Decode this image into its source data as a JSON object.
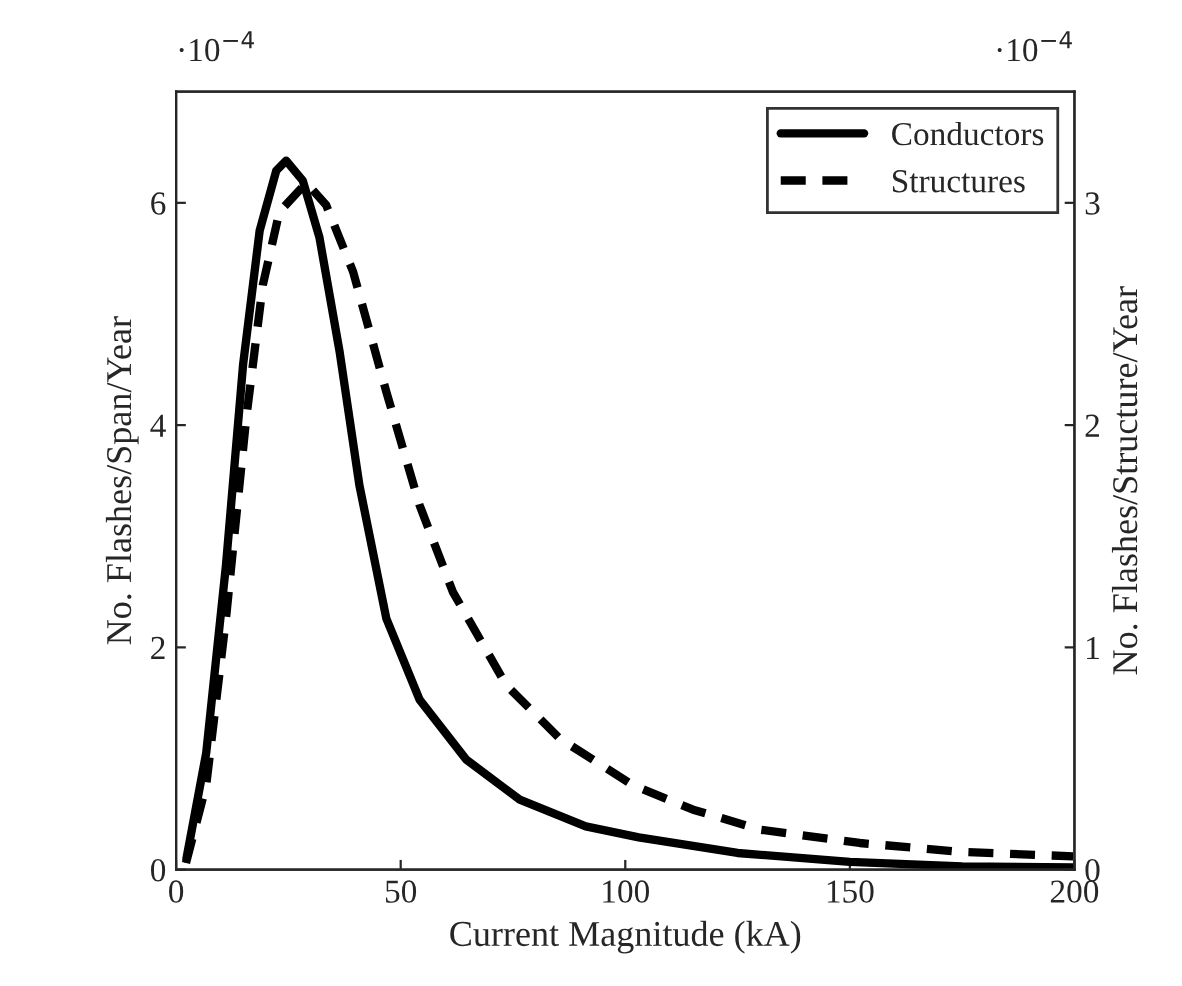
{
  "chart_data": {
    "type": "line",
    "xlabel": "Current Magnitude (kA)",
    "ylabel": "No. Flashes/Span/Year",
    "y2label": "No. Flashes/Structure/Year",
    "xlim": [
      0,
      200
    ],
    "xticks": [
      0,
      50,
      100,
      150,
      200
    ],
    "ylim": [
      0,
      7
    ],
    "yticks": [
      0,
      2,
      4,
      6
    ],
    "y2lim": [
      0,
      3.5
    ],
    "y2ticks": [
      0,
      1,
      2,
      3
    ],
    "annotations": [
      "·10$^{−4}$",
      "·10$^{−4}$"
    ],
    "legend": "top right",
    "grid": false,
    "series": [
      {
        "name": "Conductors",
        "color": "#000000",
        "line_style": "solid",
        "axis": "y",
        "x": [
          2.3,
          6.7,
          11.1,
          14.9,
          18.6,
          22.3,
          24.5,
          28.2,
          31.9,
          36.4,
          40.8,
          46.8,
          54.2,
          64.6,
          76.5,
          91.2,
          103,
          125,
          150,
          175,
          200
        ],
        "values": [
          0.1,
          1.05,
          2.74,
          4.54,
          5.75,
          6.29,
          6.38,
          6.2,
          5.69,
          4.66,
          3.46,
          2.26,
          1.53,
          0.99,
          0.63,
          0.39,
          0.29,
          0.15,
          0.07,
          0.03,
          0.02
        ]
      },
      {
        "name": "Structures",
        "color": "#000000",
        "line_style": "dashed",
        "axis": "y2",
        "x": [
          2.2,
          6.7,
          11.1,
          15.6,
          19.3,
          23.0,
          29.0,
          33.4,
          39.4,
          46.8,
          54.2,
          61.6,
          73.5,
          85.4,
          101.7,
          115.1,
          130,
          152.2,
          174.5,
          199.7
        ],
        "values": [
          0.03,
          0.38,
          1.13,
          2.03,
          2.63,
          2.96,
          3.09,
          2.99,
          2.69,
          2.15,
          1.64,
          1.25,
          0.83,
          0.59,
          0.38,
          0.27,
          0.18,
          0.12,
          0.08,
          0.06
        ]
      }
    ]
  }
}
